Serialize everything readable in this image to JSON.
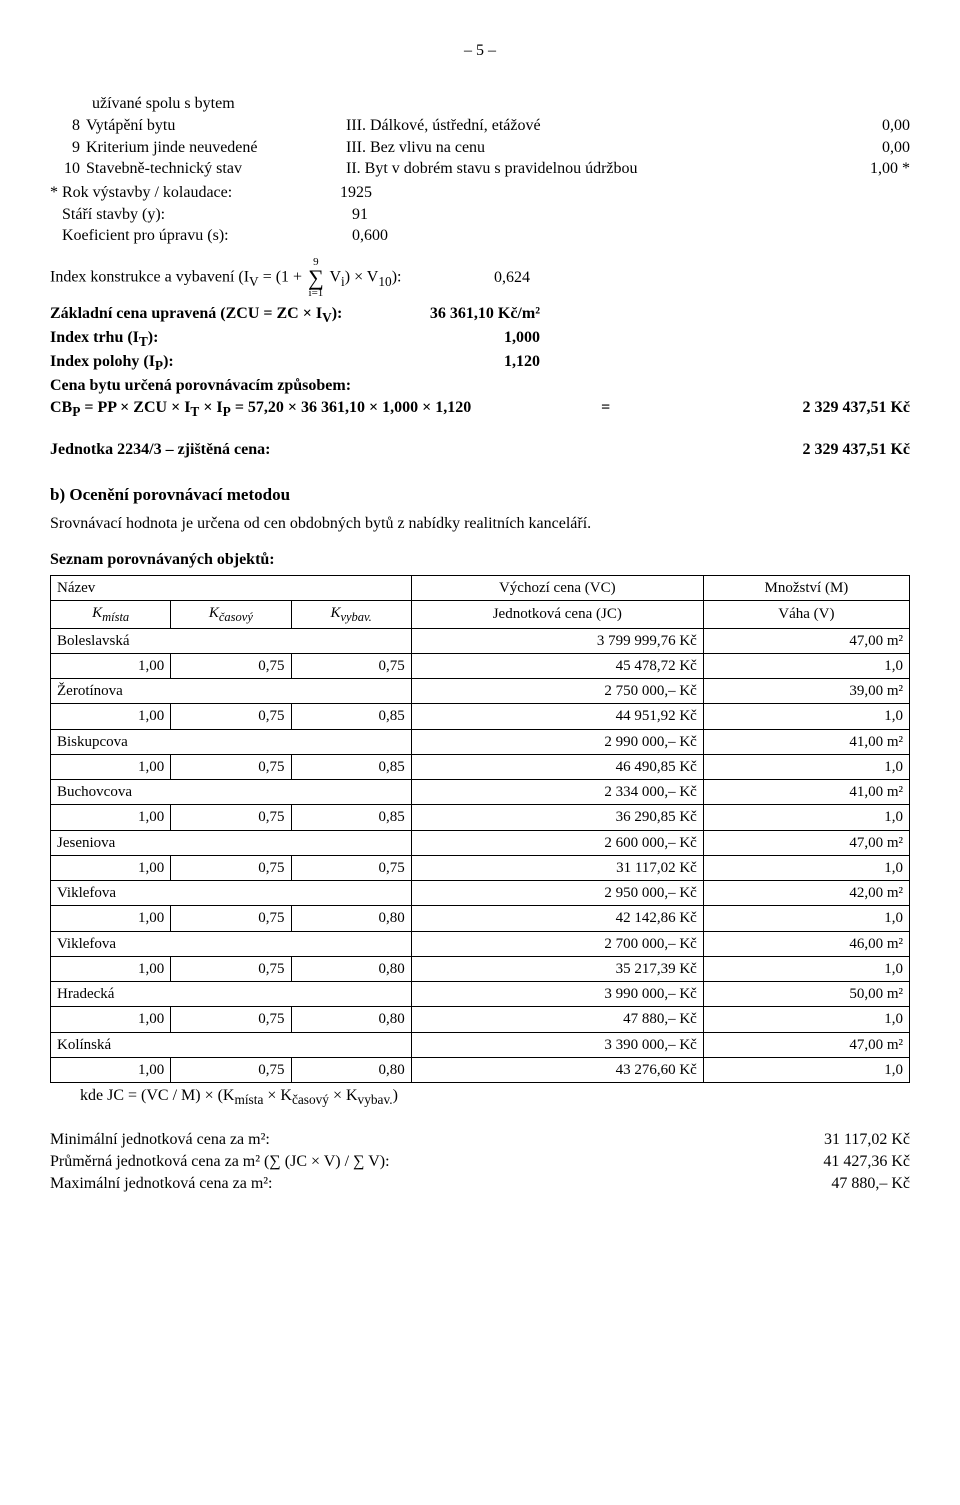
{
  "page_number": "– 5 –",
  "top_list": {
    "pre_label": "užívané spolu s bytem",
    "rows": [
      {
        "n": "8",
        "name": "Vytápění bytu",
        "desc": "III. Dálkové, ústřední, etážové",
        "val": "0,00"
      },
      {
        "n": "9",
        "name": "Kriterium jinde neuvedené",
        "desc": "III. Bez vlivu na cenu",
        "val": "0,00"
      },
      {
        "n": "10",
        "name": "Stavebně-technický stav",
        "desc": "II. Byt v dobrém stavu s pravidelnou údržbou",
        "val": "1,00 *"
      }
    ],
    "foot": [
      {
        "label": "* Rok výstavby / kolaudace:",
        "val": "1925"
      },
      {
        "label": "Stáří stavby (y):",
        "val": "91"
      },
      {
        "label": "Koeficient pro úpravu (s):",
        "val": "0,600"
      }
    ]
  },
  "index_line": {
    "prefix": "Index konstrukce a vybavení   (I",
    "sub_v": "V",
    "eq": " = (1 + ",
    "sigma_top": "9",
    "sigma_bot": "i=1",
    "after_sigma": " V",
    "sub_i": "i",
    "paren_close": ") × V",
    "sub_10": "10",
    "tail": "):",
    "value": "0,624"
  },
  "lines_bold": [
    {
      "label": "Základní cena upravená (ZCU = ZC × I_V):",
      "val": "36 361,10 Kč/m²"
    },
    {
      "label": "Index trhu (I_T):",
      "val": "1,000"
    },
    {
      "label": "Index polohy (I_P):",
      "val": "1,120"
    },
    {
      "label": "Cena bytu určená porovnávacím způsobem:",
      "val": ""
    },
    {
      "label": "CB_P = PP × ZCU × I_T × I_P = 57,20 × 36 361,10 × 1,000 × 1,120",
      "eq": "=",
      "val": "2 329 437,51 Kč"
    }
  ],
  "unit_line": {
    "label": "Jednotka 2234/3 – zjištěná cena:",
    "val": "2 329 437,51 Kč"
  },
  "section_b": {
    "title": "b)  Ocenění porovnávací metodou",
    "subtitle": "Srovnávací hodnota je určena od   cen obdobných bytů z nabídky realitních kanceláří.",
    "list_title": "Seznam porovnávaných objektů:"
  },
  "compare_table": {
    "head": {
      "name": "Název",
      "vc": "Výchozí cena (VC)",
      "m": "Množství (M)",
      "k1": "K_místa",
      "k2": "K_časový",
      "k3": "K_vybav.",
      "jc": "Jednotková cena (JC)",
      "v": "Váha (V)"
    },
    "items": [
      {
        "name": "Boleslavská",
        "vc": "3 799 999,76 Kč",
        "m": "47,00 m²",
        "k1": "1,00",
        "k2": "0,75",
        "k3": "0,75",
        "jc": "45 478,72 Kč",
        "v": "1,0"
      },
      {
        "name": "Žerotínova",
        "vc": "2 750 000,– Kč",
        "m": "39,00 m²",
        "k1": "1,00",
        "k2": "0,75",
        "k3": "0,85",
        "jc": "44 951,92 Kč",
        "v": "1,0"
      },
      {
        "name": "Biskupcova",
        "vc": "2 990 000,– Kč",
        "m": "41,00 m²",
        "k1": "1,00",
        "k2": "0,75",
        "k3": "0,85",
        "jc": "46 490,85 Kč",
        "v": "1,0"
      },
      {
        "name": "Buchovcova",
        "vc": "2 334 000,– Kč",
        "m": "41,00 m²",
        "k1": "1,00",
        "k2": "0,75",
        "k3": "0,85",
        "jc": "36 290,85 Kč",
        "v": "1,0"
      },
      {
        "name": "Jeseniova",
        "vc": "2 600 000,– Kč",
        "m": "47,00 m²",
        "k1": "1,00",
        "k2": "0,75",
        "k3": "0,75",
        "jc": "31 117,02 Kč",
        "v": "1,0"
      },
      {
        "name": "Viklefova",
        "vc": "2 950 000,– Kč",
        "m": "42,00 m²",
        "k1": "1,00",
        "k2": "0,75",
        "k3": "0,80",
        "jc": "42 142,86 Kč",
        "v": "1,0"
      },
      {
        "name": "Viklefova",
        "vc": "2 700 000,– Kč",
        "m": "46,00 m²",
        "k1": "1,00",
        "k2": "0,75",
        "k3": "0,80",
        "jc": "35 217,39 Kč",
        "v": "1,0"
      },
      {
        "name": "Hradecká",
        "vc": "3 990 000,– Kč",
        "m": "50,00 m²",
        "k1": "1,00",
        "k2": "0,75",
        "k3": "0,80",
        "jc": "47 880,– Kč",
        "v": "1,0"
      },
      {
        "name": "Kolínská",
        "vc": "3 390 000,– Kč",
        "m": "47,00 m²",
        "k1": "1,00",
        "k2": "0,75",
        "k3": "0,80",
        "jc": "43 276,60 Kč",
        "v": "1,0"
      }
    ],
    "formula": "kde JC = (VC / M) × (K_místa × K_časový × K_vybav.)"
  },
  "bottom": [
    {
      "label": "Minimální jednotková cena za m²:",
      "val": "31 117,02 Kč"
    },
    {
      "label": "Průměrná jednotková cena za m² (∑ (JC × V)  /  ∑ V):",
      "val": "41 427,36 Kč"
    },
    {
      "label": "Maximální jednotková cena za m²:",
      "val": "47 880,– Kč"
    }
  ]
}
